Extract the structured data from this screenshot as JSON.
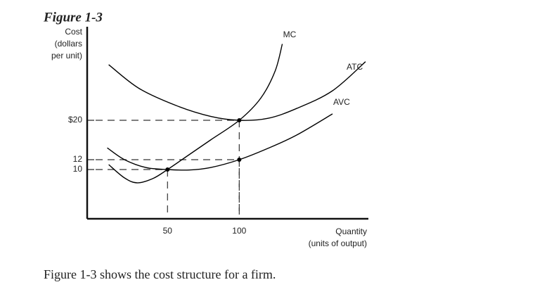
{
  "chart_data": {
    "type": "line",
    "title": "Figure 1-3",
    "y_label": [
      "Cost",
      "(dollars",
      "per unit)"
    ],
    "x_label": [
      "Quantity",
      "(units of output)"
    ],
    "caption": "Figure 1-3 shows the cost structure for a firm.",
    "xlim": [
      -6,
      190
    ],
    "ylim": [
      0,
      39
    ],
    "xticks": [
      50,
      100
    ],
    "yticks": [
      {
        "value": 20,
        "label": "$20"
      },
      12,
      10
    ],
    "series": [
      {
        "name": "MC",
        "color": "#000000",
        "x": [
          9,
          20,
          29,
          40,
          50,
          65,
          80,
          100,
          115,
          125,
          130
        ],
        "y": [
          11,
          8.3,
          7.3,
          8.2,
          10,
          13,
          16,
          20,
          24.5,
          30,
          35.5
        ]
      },
      {
        "name": "ATC",
        "color": "#000000",
        "x": [
          9,
          30,
          56,
          80,
          100,
          120,
          140,
          165,
          188
        ],
        "y": [
          31.3,
          26.5,
          23,
          20.8,
          20,
          20.4,
          22.4,
          26,
          31.9
        ]
      },
      {
        "name": "AVC",
        "color": "#000000",
        "x": [
          8,
          20,
          35,
          50,
          65,
          80,
          100,
          120,
          140,
          165
        ],
        "y": [
          14.4,
          12,
          10.4,
          10,
          9.9,
          10.4,
          12,
          14.3,
          17,
          21.3
        ]
      }
    ],
    "points": {
      "x": [
        50,
        100,
        100
      ],
      "y": [
        10,
        20,
        12
      ]
    }
  }
}
